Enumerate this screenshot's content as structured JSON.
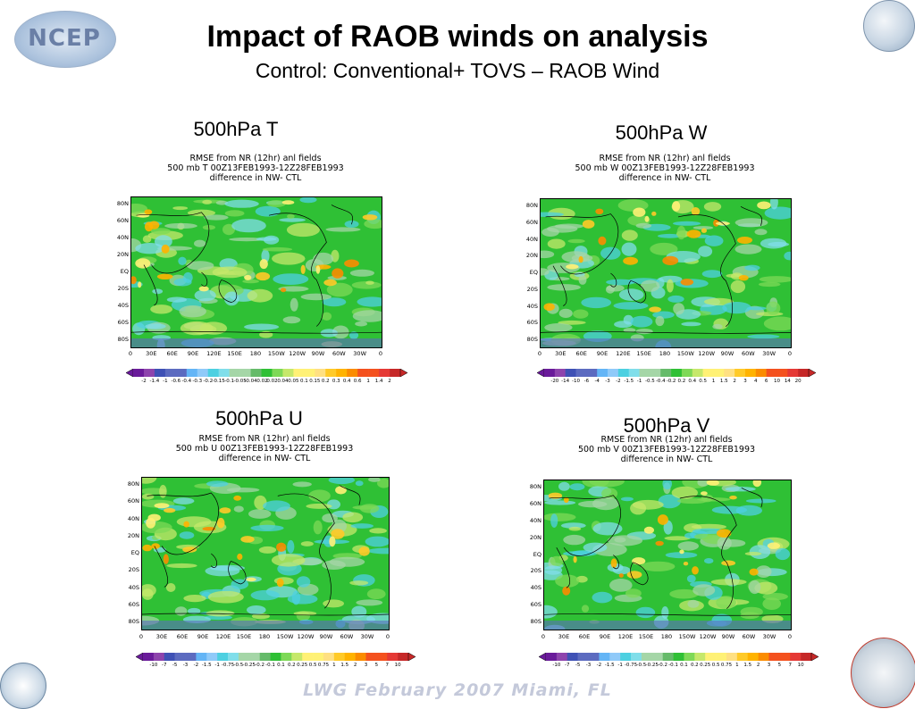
{
  "title": "Impact of RAOB winds on analysis",
  "subtitle": "Control: Conventional+ TOVS – RAOB Wind",
  "footer": "LWG  February 2007 Miami, FL",
  "logos": {
    "ncep": "NCEP"
  },
  "colors": {
    "map_base": "#2fc035",
    "title": "#000000",
    "footer": "#c4c9da"
  },
  "colorbar_palette": [
    "#6a1b9a",
    "#8e44ad",
    "#3f51b5",
    "#5c6bc0",
    "#64b5f6",
    "#90caf9",
    "#4dd0e1",
    "#80deea",
    "#a5d6a7",
    "#66bb6a",
    "#2fc035",
    "#7ed957",
    "#c6e86b",
    "#fff176",
    "#ffe082",
    "#ffca28",
    "#ffb300",
    "#fb8c00",
    "#f4511e",
    "#e53935",
    "#c62828"
  ],
  "chart_data": [
    {
      "type": "heatmap",
      "panel_title": "500hPa T",
      "header_lines": [
        "RMSE  from  NR  (12hr)    anl    fields",
        "500  mb  T  00Z13FEB1993-12Z28FEB1993",
        "difference  in    NW-  CTL"
      ],
      "xticks": [
        "0",
        "30E",
        "60E",
        "90E",
        "120E",
        "150E",
        "180",
        "150W",
        "120W",
        "90W",
        "60W",
        "30W",
        "0"
      ],
      "yticks": [
        "80N",
        "60N",
        "40N",
        "20N",
        "EQ",
        "20S",
        "40S",
        "60S",
        "80S"
      ],
      "colorbar_levels": [
        "-2",
        "-1.4",
        "-1",
        "-0.6",
        "-0.4",
        "-0.3",
        "-0.2",
        "-0.15",
        "-0.1",
        "-0.05",
        "-0.04",
        "-0.02",
        "0.02",
        "0.04",
        "0.05",
        "0.1",
        "0.15",
        "0.2",
        "0.3",
        "0.4",
        "0.6",
        "1",
        "1.4",
        "2"
      ]
    },
    {
      "type": "heatmap",
      "panel_title": "500hPa W",
      "header_lines": [
        "RMSE  from  NR  (12hr)    anl    fields",
        "500  mb  W  00Z13FEB1993-12Z28FEB1993",
        "difference  in    NW-  CTL"
      ],
      "xticks": [
        "0",
        "30E",
        "60E",
        "90E",
        "120E",
        "150E",
        "180",
        "150W",
        "120W",
        "90W",
        "60W",
        "30W",
        "0"
      ],
      "yticks": [
        "80N",
        "60N",
        "40N",
        "20N",
        "EQ",
        "20S",
        "40S",
        "60S",
        "80S"
      ],
      "colorbar_levels": [
        "-20",
        "-14",
        "-10",
        "-6",
        "-4",
        "-3",
        "-2",
        "-1.5",
        "-1",
        "-0.5",
        "-0.4",
        "-0.2",
        "0.2",
        "0.4",
        "0.5",
        "1",
        "1.5",
        "2",
        "3",
        "4",
        "6",
        "10",
        "14",
        "20"
      ]
    },
    {
      "type": "heatmap",
      "panel_title": "500hPa U",
      "header_lines": [
        "RMSE  from  NR  (12hr)    anl    fields",
        "500  mb  U  00Z13FEB1993-12Z28FEB1993",
        "difference  in    NW-  CTL"
      ],
      "xticks": [
        "0",
        "30E",
        "60E",
        "90E",
        "120E",
        "150E",
        "180",
        "150W",
        "120W",
        "90W",
        "60W",
        "30W",
        "0"
      ],
      "yticks": [
        "80N",
        "60N",
        "40N",
        "20N",
        "EQ",
        "20S",
        "40S",
        "60S",
        "80S"
      ],
      "colorbar_levels": [
        "-10",
        "-7",
        "-5",
        "-3",
        "-2",
        "-1.5",
        "-1",
        "-0.75",
        "-0.5",
        "-0.25",
        "-0.2",
        "-0.1",
        "0.1",
        "0.2",
        "0.25",
        "0.5",
        "0.75",
        "1",
        "1.5",
        "2",
        "3",
        "5",
        "7",
        "10"
      ]
    },
    {
      "type": "heatmap",
      "panel_title": "500hPa V",
      "header_lines": [
        "RMSE  from  NR  (12hr)    anl    fields",
        "500  mb  V  00Z13FEB1993-12Z28FEB1993",
        "difference  in    NW-  CTL"
      ],
      "xticks": [
        "0",
        "30E",
        "60E",
        "90E",
        "120E",
        "150E",
        "180",
        "150W",
        "120W",
        "90W",
        "60W",
        "30W",
        "0"
      ],
      "yticks": [
        "80N",
        "60N",
        "40N",
        "20N",
        "EQ",
        "20S",
        "40S",
        "60S",
        "80S"
      ],
      "colorbar_levels": [
        "-10",
        "-7",
        "-5",
        "-3",
        "-2",
        "-1.5",
        "-1",
        "-0.75",
        "-0.5",
        "-0.25",
        "-0.2",
        "-0.1",
        "0.1",
        "0.2",
        "0.25",
        "0.5",
        "0.75",
        "1",
        "1.5",
        "2",
        "3",
        "5",
        "7",
        "10"
      ]
    }
  ]
}
